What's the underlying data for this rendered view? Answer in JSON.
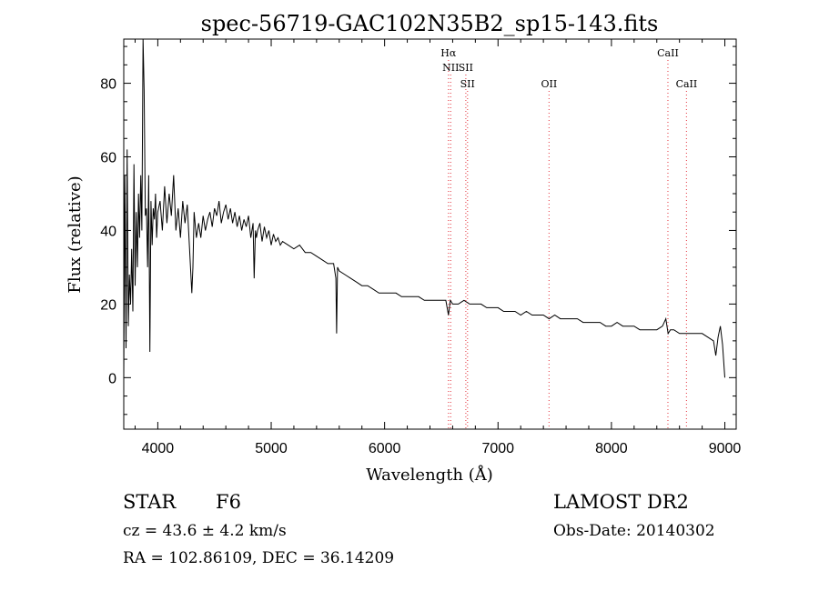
{
  "chart_data": {
    "type": "line",
    "title": "spec-56719-GAC102N35B2_sp15-143.fits",
    "xlabel": "Wavelength (Å)",
    "ylabel": "Flux (relative)",
    "xlim": [
      3700,
      9100
    ],
    "ylim": [
      -14,
      92
    ],
    "xticks": [
      4000,
      5000,
      6000,
      7000,
      8000,
      9000
    ],
    "yticks": [
      0,
      20,
      40,
      60,
      80
    ],
    "series": [
      {
        "name": "",
        "x": [
          3700,
          3710,
          3720,
          3730,
          3740,
          3750,
          3760,
          3770,
          3780,
          3790,
          3800,
          3810,
          3820,
          3830,
          3840,
          3850,
          3860,
          3870,
          3880,
          3890,
          3900,
          3910,
          3920,
          3930,
          3940,
          3950,
          3960,
          3970,
          3980,
          3990,
          4000,
          4020,
          4040,
          4060,
          4080,
          4100,
          4120,
          4140,
          4160,
          4180,
          4200,
          4220,
          4240,
          4260,
          4280,
          4300,
          4310,
          4320,
          4340,
          4360,
          4380,
          4400,
          4420,
          4440,
          4460,
          4480,
          4500,
          4520,
          4540,
          4560,
          4580,
          4600,
          4620,
          4640,
          4660,
          4680,
          4700,
          4720,
          4740,
          4760,
          4780,
          4800,
          4820,
          4840,
          4850,
          4861,
          4870,
          4880,
          4900,
          4920,
          4940,
          4960,
          4980,
          5000,
          5020,
          5040,
          5060,
          5080,
          5100,
          5150,
          5200,
          5250,
          5300,
          5350,
          5400,
          5450,
          5500,
          5550,
          5570,
          5577,
          5585,
          5600,
          5650,
          5700,
          5750,
          5800,
          5850,
          5900,
          5950,
          6000,
          6050,
          6100,
          6150,
          6200,
          6250,
          6300,
          6350,
          6400,
          6450,
          6500,
          6540,
          6563,
          6580,
          6600,
          6650,
          6700,
          6750,
          6800,
          6850,
          6900,
          6950,
          7000,
          7050,
          7100,
          7150,
          7200,
          7250,
          7300,
          7350,
          7400,
          7450,
          7500,
          7550,
          7600,
          7650,
          7700,
          7750,
          7800,
          7850,
          7900,
          7950,
          8000,
          8050,
          8100,
          8150,
          8200,
          8250,
          8300,
          8350,
          8400,
          8450,
          8480,
          8500,
          8520,
          8550,
          8600,
          8650,
          8700,
          8750,
          8800,
          8850,
          8900,
          8920,
          8940,
          8960,
          8980,
          9000
        ],
        "y": [
          0,
          55,
          8,
          62,
          14,
          28,
          20,
          35,
          18,
          58,
          25,
          45,
          30,
          50,
          38,
          55,
          40,
          92,
          78,
          44,
          46,
          30,
          55,
          7,
          48,
          36,
          46,
          43,
          50,
          38,
          45,
          48,
          40,
          52,
          42,
          50,
          44,
          55,
          40,
          46,
          38,
          48,
          42,
          47,
          35,
          23,
          30,
          45,
          38,
          42,
          38,
          44,
          40,
          43,
          45,
          41,
          46,
          44,
          48,
          42,
          45,
          47,
          43,
          46,
          42,
          45,
          41,
          44,
          40,
          43,
          41,
          44,
          38,
          42,
          27,
          40,
          38,
          40,
          42,
          37,
          41,
          38,
          40,
          36,
          39,
          37,
          38,
          36,
          37,
          36,
          35,
          36,
          34,
          34,
          33,
          32,
          31,
          31,
          27,
          12,
          30,
          29,
          28,
          27,
          26,
          25,
          25,
          24,
          23,
          23,
          23,
          23,
          22,
          22,
          22,
          22,
          21,
          21,
          21,
          21,
          21,
          17,
          21,
          20,
          20,
          21,
          20,
          20,
          20,
          19,
          19,
          19,
          18,
          18,
          18,
          17,
          18,
          17,
          17,
          17,
          16,
          17,
          16,
          16,
          16,
          16,
          15,
          15,
          15,
          15,
          14,
          14,
          15,
          14,
          14,
          14,
          13,
          13,
          13,
          13,
          14,
          16,
          12,
          13,
          13,
          12,
          12,
          12,
          12,
          12,
          11,
          10,
          6,
          11,
          14,
          9,
          0
        ]
      }
    ],
    "annotations": [
      {
        "label": "Hα",
        "x": 6563,
        "row": 0
      },
      {
        "label": "NII",
        "x": 6583,
        "row": 1
      },
      {
        "label": "SII",
        "x": 6716,
        "row": 1
      },
      {
        "label": "SII",
        "x": 6731,
        "row": 2
      },
      {
        "label": "OII",
        "x": 7450,
        "row": 2
      },
      {
        "label": "CaII",
        "x": 8498,
        "row": 0
      },
      {
        "label": "CaII",
        "x": 8662,
        "row": 2
      }
    ],
    "line_marker_color": "#e8525a",
    "grid": false,
    "legend": "none"
  },
  "info": {
    "object_class": "STAR",
    "subclass": "F6",
    "survey": "LAMOST DR2",
    "redshift": "cz = 43.6 ± 4.2 km/s",
    "obs_date": "Obs-Date: 20140302",
    "coords": "RA = 102.86109, DEC =  36.14209"
  }
}
